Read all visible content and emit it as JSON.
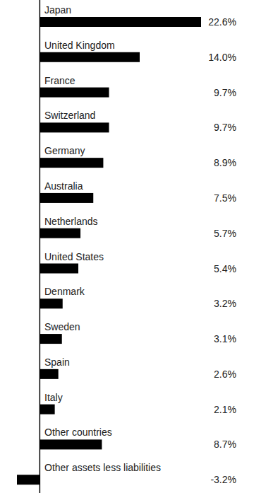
{
  "chart_data": {
    "type": "bar",
    "orientation": "horizontal",
    "categories": [
      "Japan",
      "United Kingdom",
      "France",
      "Switzerland",
      "Germany",
      "Australia",
      "Netherlands",
      "United States",
      "Denmark",
      "Sweden",
      "Spain",
      "Italy",
      "Other countries",
      "Other assets less liabilities"
    ],
    "values": [
      22.6,
      14.0,
      9.7,
      9.7,
      8.9,
      7.5,
      5.7,
      5.4,
      3.2,
      3.1,
      2.6,
      2.1,
      8.7,
      -3.2
    ],
    "value_labels": [
      "22.6%",
      "14.0%",
      "9.7%",
      "9.7%",
      "8.9%",
      "7.5%",
      "5.7%",
      "5.4%",
      "3.2%",
      "3.1%",
      "2.6%",
      "2.1%",
      "8.7%",
      "-3.2%"
    ],
    "color": "#000000",
    "data_labels": true,
    "tick_labels": false,
    "xlim": [
      -3.2,
      22.6
    ],
    "xticks": [
      0
    ],
    "grid": false
  }
}
